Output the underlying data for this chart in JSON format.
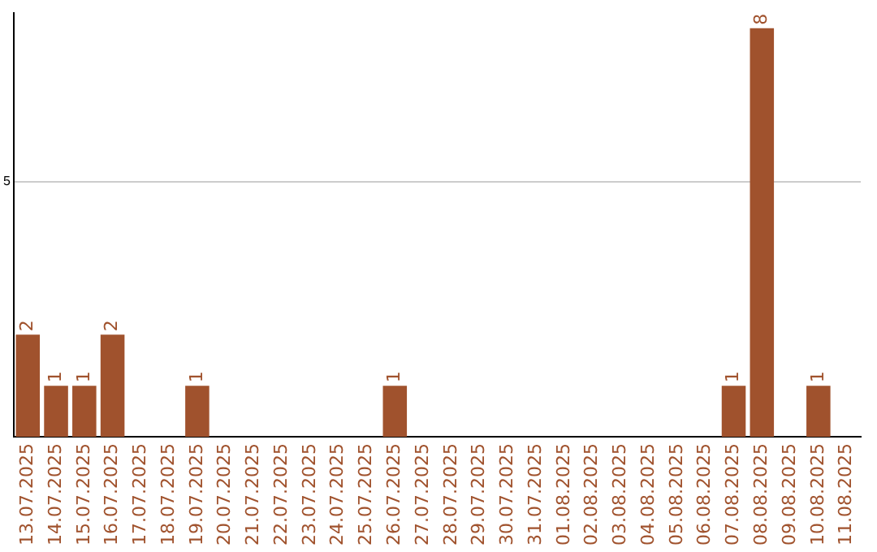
{
  "chart_data": {
    "type": "bar",
    "categories": [
      "13.07.2025",
      "14.07.2025",
      "15.07.2025",
      "16.07.2025",
      "17.07.2025",
      "18.07.2025",
      "19.07.2025",
      "20.07.2025",
      "21.07.2025",
      "22.07.2025",
      "23.07.2025",
      "24.07.2025",
      "25.07.2025",
      "26.07.2025",
      "27.07.2025",
      "28.07.2025",
      "29.07.2025",
      "30.07.2025",
      "31.07.2025",
      "01.08.2025",
      "02.08.2025",
      "03.08.2025",
      "04.08.2025",
      "05.08.2025",
      "06.08.2025",
      "07.08.2025",
      "08.08.2025",
      "09.08.2025",
      "10.08.2025",
      "11.08.2025"
    ],
    "values": [
      2,
      1,
      1,
      2,
      0,
      0,
      1,
      0,
      0,
      0,
      0,
      0,
      0,
      1,
      0,
      0,
      0,
      0,
      0,
      0,
      0,
      0,
      0,
      0,
      0,
      1,
      8,
      0,
      1,
      0
    ],
    "value_labels": [
      "2",
      "1",
      "1",
      "2",
      null,
      null,
      "1",
      null,
      null,
      null,
      null,
      null,
      null,
      "1",
      null,
      null,
      null,
      null,
      null,
      null,
      null,
      null,
      null,
      null,
      null,
      "1",
      "8",
      null,
      "1",
      null
    ],
    "color": "#a0522d",
    "ylim": [
      0,
      8.3
    ],
    "yticks": [
      5
    ],
    "grid": "y",
    "legend": false
  }
}
